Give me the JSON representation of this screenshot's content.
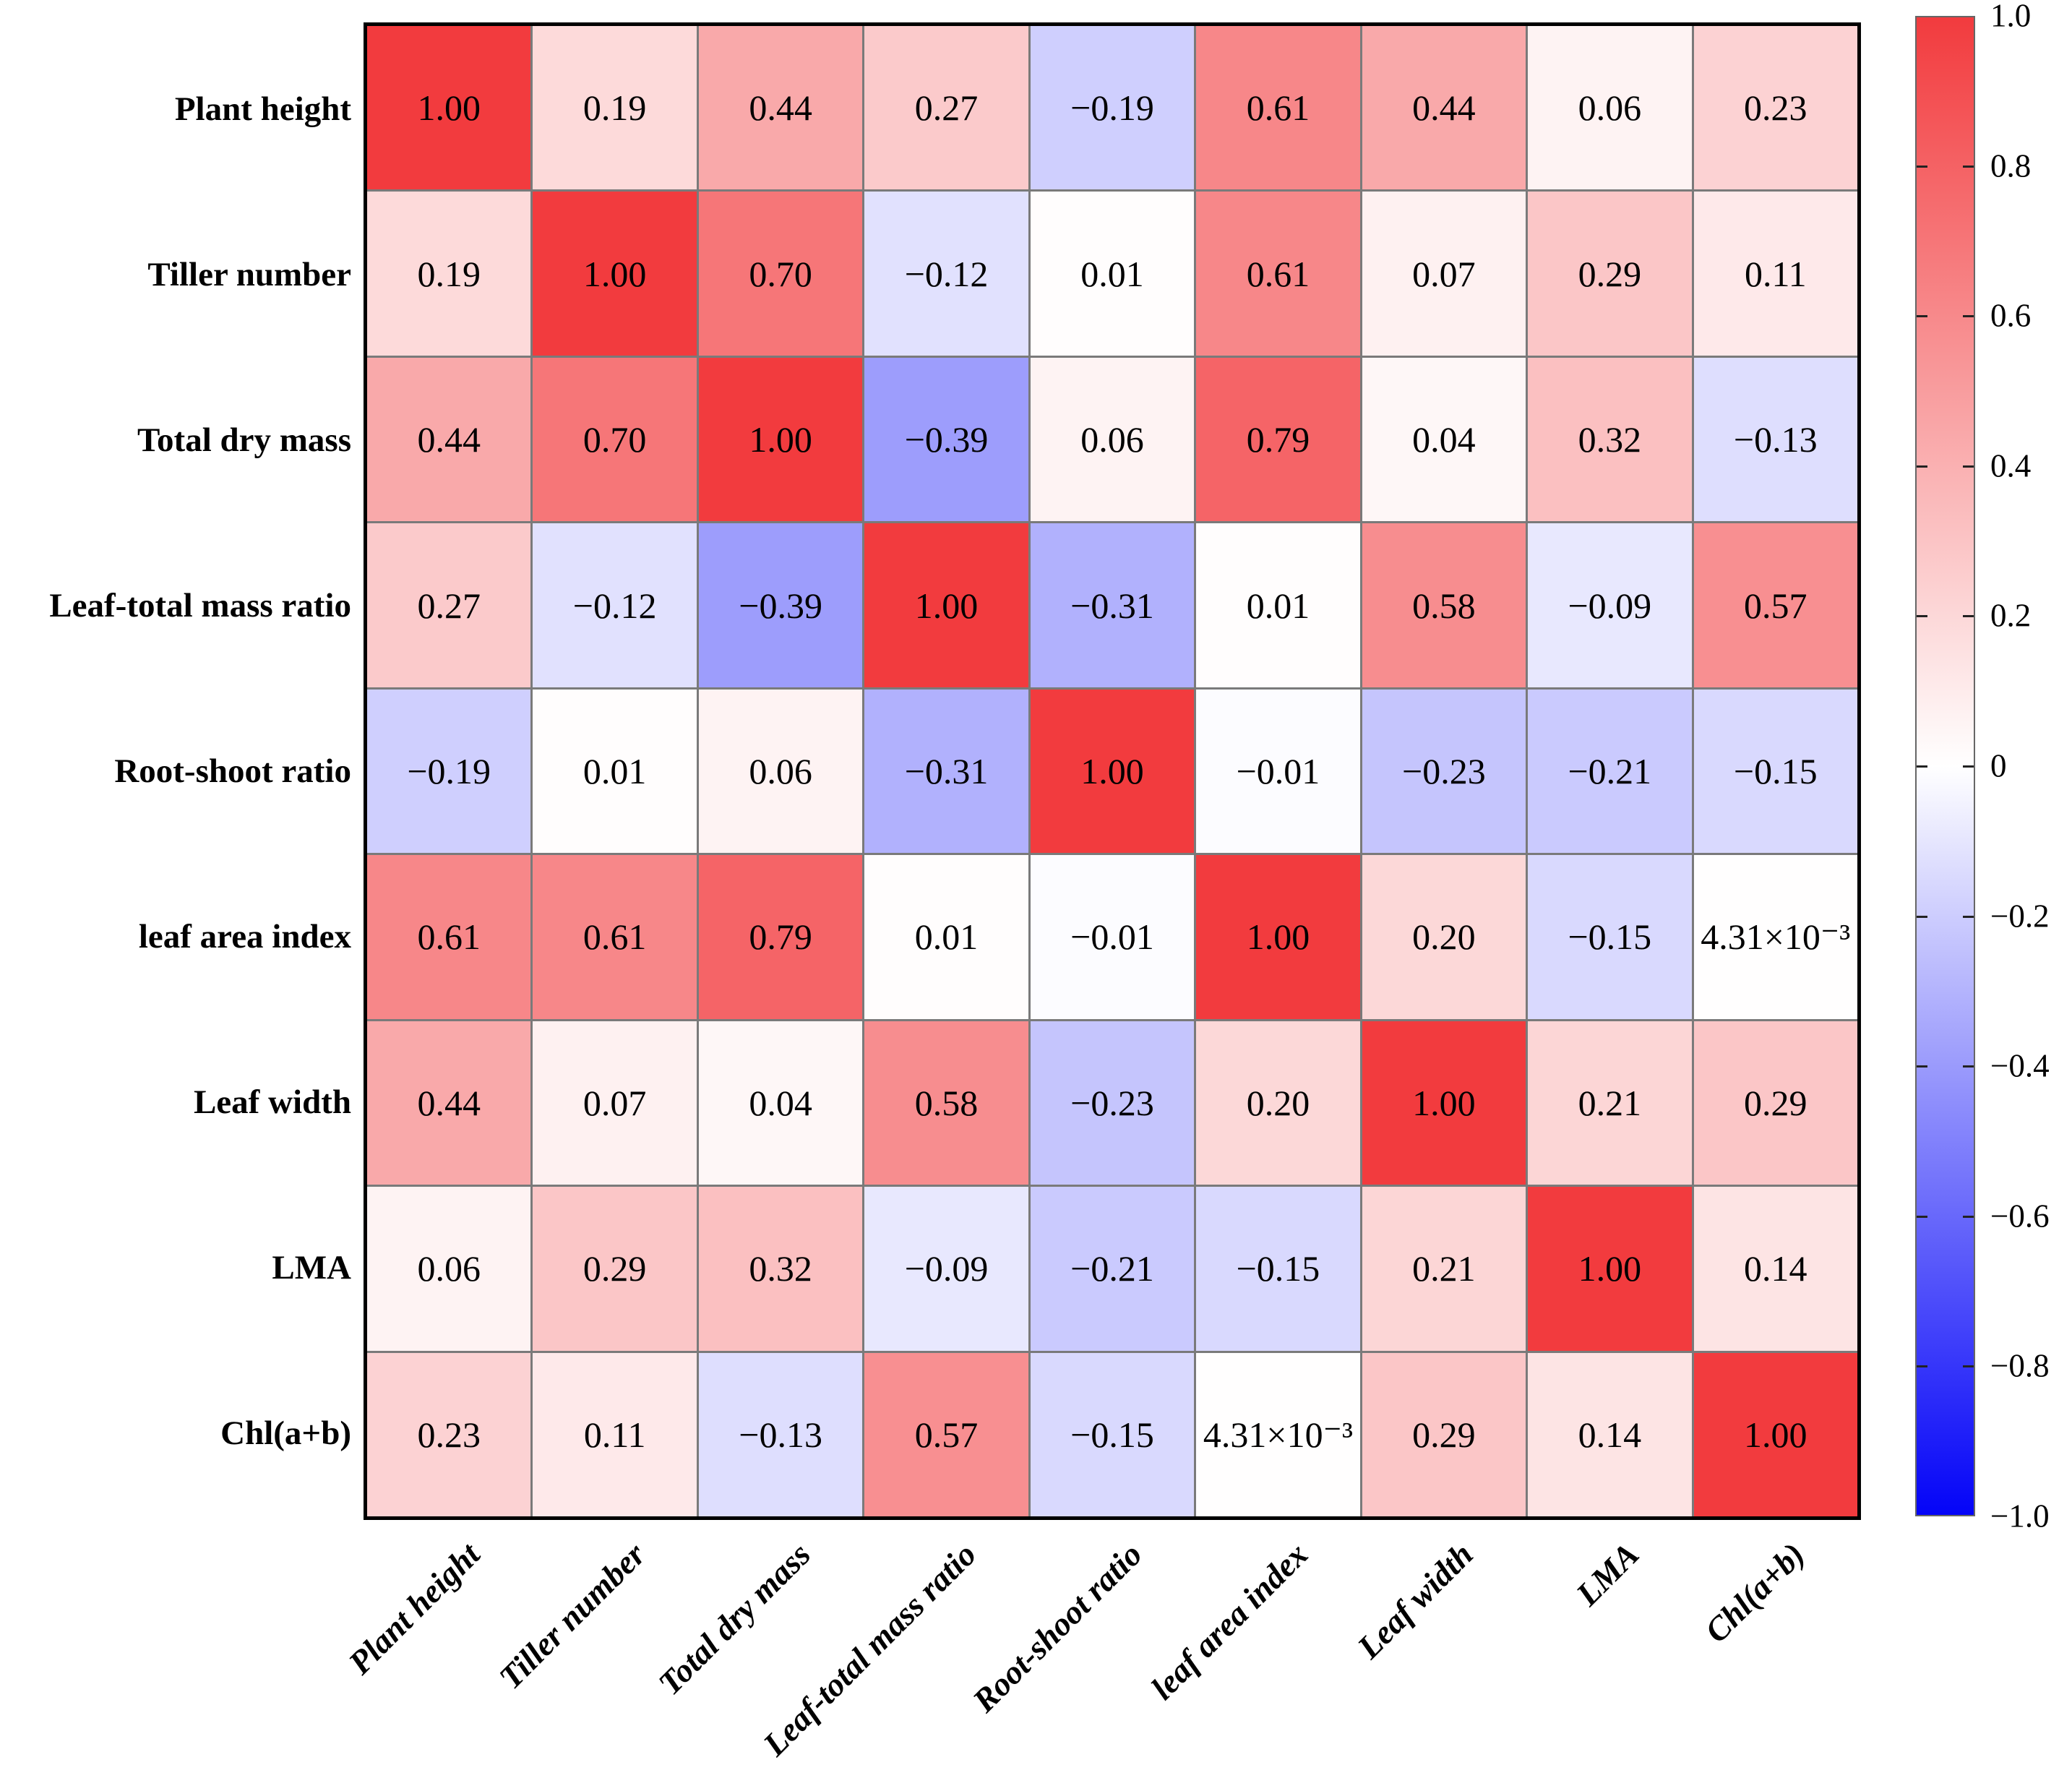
{
  "chart_data": {
    "type": "heatmap",
    "title": "",
    "xlabel": "",
    "ylabel": "",
    "grid": true,
    "legend_position": "right-colorbar",
    "variables": [
      "Plant height",
      "Tiller number",
      "Total dry mass",
      "Leaf-total mass ratio",
      "Root-shoot ratio",
      "leaf area index",
      "Leaf width",
      "LMA",
      "Chl(a+b)"
    ],
    "matrix": [
      [
        1.0,
        0.19,
        0.44,
        0.27,
        -0.19,
        0.61,
        0.44,
        0.06,
        0.23
      ],
      [
        0.19,
        1.0,
        0.7,
        -0.12,
        0.01,
        0.61,
        0.07,
        0.29,
        0.11
      ],
      [
        0.44,
        0.7,
        1.0,
        -0.39,
        0.06,
        0.79,
        0.04,
        0.32,
        -0.13
      ],
      [
        0.27,
        -0.12,
        -0.39,
        1.0,
        -0.31,
        0.01,
        0.58,
        -0.09,
        0.57
      ],
      [
        -0.19,
        0.01,
        0.06,
        -0.31,
        1.0,
        -0.01,
        -0.23,
        -0.21,
        -0.15
      ],
      [
        0.61,
        0.61,
        0.79,
        0.01,
        -0.01,
        1.0,
        0.2,
        -0.15,
        0.00431
      ],
      [
        0.44,
        0.07,
        0.04,
        0.58,
        -0.23,
        0.2,
        1.0,
        0.21,
        0.29
      ],
      [
        0.06,
        0.29,
        0.32,
        -0.09,
        -0.21,
        -0.15,
        0.21,
        1.0,
        0.14
      ],
      [
        0.23,
        0.11,
        -0.13,
        0.57,
        -0.15,
        0.00431,
        0.29,
        0.14,
        1.0
      ]
    ],
    "cell_labels": [
      [
        "1.00",
        "0.19",
        "0.44",
        "0.27",
        "−0.19",
        "0.61",
        "0.44",
        "0.06",
        "0.23"
      ],
      [
        "0.19",
        "1.00",
        "0.70",
        "−0.12",
        "0.01",
        "0.61",
        "0.07",
        "0.29",
        "0.11"
      ],
      [
        "0.44",
        "0.70",
        "1.00",
        "−0.39",
        "0.06",
        "0.79",
        "0.04",
        "0.32",
        "−0.13"
      ],
      [
        "0.27",
        "−0.12",
        "−0.39",
        "1.00",
        "−0.31",
        "0.01",
        "0.58",
        "−0.09",
        "0.57"
      ],
      [
        "−0.19",
        "0.01",
        "0.06",
        "−0.31",
        "1.00",
        "−0.01",
        "−0.23",
        "−0.21",
        "−0.15"
      ],
      [
        "0.61",
        "0.61",
        "0.79",
        "0.01",
        "−0.01",
        "1.00",
        "0.20",
        "−0.15",
        "4.31×10⁻³"
      ],
      [
        "0.44",
        "0.07",
        "0.04",
        "0.58",
        "−0.23",
        "0.20",
        "1.00",
        "0.21",
        "0.29"
      ],
      [
        "0.06",
        "0.29",
        "0.32",
        "−0.09",
        "−0.21",
        "−0.15",
        "0.21",
        "1.00",
        "0.14"
      ],
      [
        "0.23",
        "0.11",
        "−0.13",
        "0.57",
        "−0.15",
        "4.31×10⁻³",
        "0.29",
        "0.14",
        "1.00"
      ]
    ],
    "colorbar": {
      "min": -1.0,
      "max": 1.0,
      "tick_labels": [
        "1.0",
        "0.8",
        "0.6",
        "0.4",
        "0.2",
        "0",
        "−0.2",
        "−0.4",
        "−0.6",
        "−0.8",
        "−1.0"
      ],
      "tick_values": [
        1.0,
        0.8,
        0.6,
        0.4,
        0.2,
        0.0,
        -0.2,
        -0.4,
        -0.6,
        -0.8,
        -1.0
      ]
    },
    "colors": {
      "positive_max": "#f23b3e",
      "zero": "#ffffff",
      "negative_max": "#0404f8",
      "grid_line": "#7a7a7a",
      "outer_border": "#000000",
      "cell_text": "#000000"
    }
  }
}
